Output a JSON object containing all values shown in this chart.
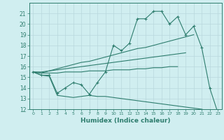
{
  "x": [
    0,
    1,
    2,
    3,
    4,
    5,
    6,
    7,
    8,
    9,
    10,
    11,
    12,
    13,
    14,
    15,
    16,
    17,
    18,
    19,
    20,
    21,
    22,
    23
  ],
  "line_main": [
    15.5,
    15.2,
    15.2,
    13.5,
    14.0,
    14.5,
    14.3,
    13.4,
    14.5,
    15.5,
    18.0,
    17.5,
    18.2,
    20.5,
    20.5,
    21.2,
    21.2,
    20.0,
    20.7,
    19.0,
    19.8,
    17.8,
    14.0,
    11.7
  ],
  "line_upper": [
    15.5,
    15.4,
    15.6,
    15.8,
    16.0,
    16.2,
    16.4,
    16.5,
    16.7,
    16.9,
    17.1,
    17.3,
    17.5,
    17.7,
    17.8,
    18.0,
    18.2,
    18.4,
    18.6,
    18.8,
    19.0,
    null,
    null,
    null
  ],
  "line_mid": [
    15.5,
    15.5,
    15.6,
    15.7,
    15.8,
    15.9,
    16.0,
    16.1,
    16.2,
    16.3,
    16.4,
    16.5,
    16.6,
    16.7,
    16.8,
    16.9,
    17.0,
    17.1,
    17.2,
    17.3,
    null,
    null,
    null,
    null
  ],
  "line_lower": [
    15.5,
    15.4,
    15.4,
    15.4,
    15.5,
    15.5,
    15.5,
    15.6,
    15.6,
    15.6,
    15.7,
    15.7,
    15.7,
    15.8,
    15.8,
    15.9,
    15.9,
    16.0,
    16.0,
    null,
    null,
    null,
    null,
    null
  ],
  "line_bot": [
    15.5,
    15.2,
    15.1,
    13.3,
    13.2,
    13.1,
    13.2,
    13.3,
    13.2,
    13.2,
    13.1,
    13.0,
    12.9,
    12.8,
    12.7,
    12.6,
    12.5,
    12.4,
    12.3,
    12.2,
    12.1,
    12.0,
    11.8,
    11.7
  ],
  "color": "#2e7d6e",
  "bg_color": "#d0eef0",
  "grid_color": "#b8d8dc",
  "xlabel": "Humidex (Indice chaleur)",
  "ylim": [
    12,
    22
  ],
  "xlim": [
    -0.5,
    23.5
  ],
  "yticks": [
    12,
    13,
    14,
    15,
    16,
    17,
    18,
    19,
    20,
    21
  ],
  "xticks": [
    0,
    1,
    2,
    3,
    4,
    5,
    6,
    7,
    8,
    9,
    10,
    11,
    12,
    13,
    14,
    15,
    16,
    17,
    18,
    19,
    20,
    21,
    22,
    23
  ]
}
